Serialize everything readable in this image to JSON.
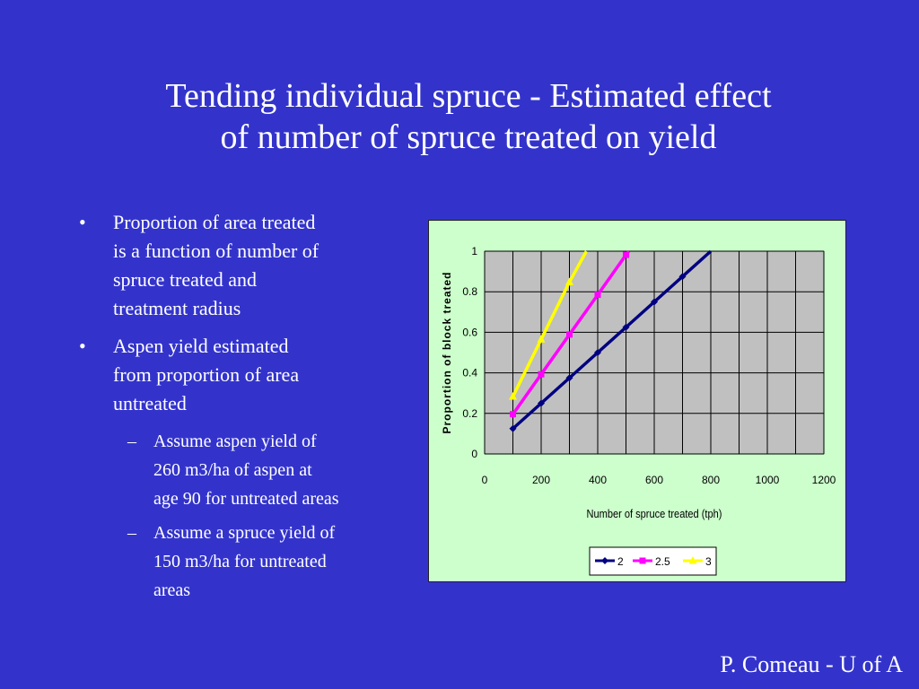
{
  "slide": {
    "title_lines": [
      "Tending individual spruce - Estimated effect",
      "of number of spruce treated on yield"
    ],
    "bullets": [
      {
        "mark": "•",
        "text_lines": [
          "Proportion of area treated",
          "is a function of number of",
          "spruce treated and",
          "treatment radius"
        ]
      },
      {
        "mark": "•",
        "text_lines": [
          "Aspen yield estimated",
          "from proportion of area",
          "untreated"
        ]
      }
    ],
    "sub_bullets": [
      {
        "mark": "–",
        "text_lines": [
          "Assume aspen yield of",
          "260 m3/ha of aspen at",
          "age 90 for untreated areas"
        ]
      },
      {
        "mark": "–",
        "text_lines": [
          "Assume a spruce yield of",
          "150 m3/ha for untreated",
          "areas"
        ]
      }
    ],
    "footer": "P. Comeau - U of A"
  },
  "colors": {
    "background": "#3333cc",
    "chart_area": "#ccffcc",
    "plot_area": "#c0c0c0"
  },
  "chart_data": {
    "type": "line",
    "xlabel": "Number of spruce treated (tph)",
    "ylabel": "Proportion of block treated",
    "xlim": [
      0,
      1200
    ],
    "ylim": [
      0,
      1
    ],
    "x_ticks": [
      "0",
      "200",
      "400",
      "600",
      "800",
      "1000",
      "1200"
    ],
    "y_ticks": [
      "0",
      "0.2",
      "0.4",
      "0.6",
      "0.8",
      "1"
    ],
    "grid": true,
    "legend_position": "bottom",
    "series": [
      {
        "name": "2",
        "color": "#000080",
        "marker": "diamond",
        "x": [
          100,
          200,
          300,
          400,
          500,
          600,
          700,
          800
        ],
        "y": [
          0.125,
          0.25,
          0.375,
          0.5,
          0.625,
          0.75,
          0.875,
          1.0
        ]
      },
      {
        "name": "2.5",
        "color": "#ff00ff",
        "marker": "square",
        "x": [
          100,
          200,
          300,
          400,
          500,
          510
        ],
        "y": [
          0.196,
          0.393,
          0.589,
          0.785,
          0.982,
          1.0
        ]
      },
      {
        "name": "3",
        "color": "#ffff00",
        "marker": "triangle",
        "x": [
          100,
          200,
          300,
          360
        ],
        "y": [
          0.283,
          0.565,
          0.848,
          1.0
        ]
      }
    ]
  }
}
